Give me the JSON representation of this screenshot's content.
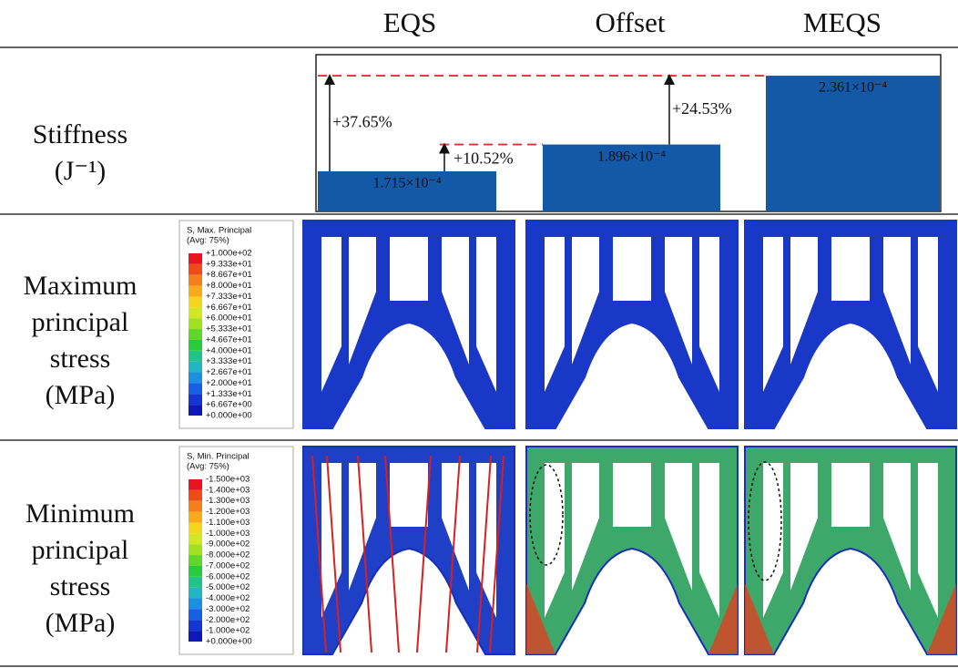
{
  "header": {
    "columns": [
      "EQS",
      "Offset",
      "MEQS"
    ]
  },
  "stiffness": {
    "label": [
      "Stiffness",
      "(J⁻¹)"
    ],
    "bars": [
      {
        "value": 0.0001715,
        "label": "1.715×10⁻⁴"
      },
      {
        "value": 0.0001896,
        "label": "1.896×10⁻⁴"
      },
      {
        "value": 0.0002361,
        "label": "2.361×10⁻⁴"
      }
    ],
    "color": "#1458a8",
    "ylim": [
      0.0001444,
      0.0002503
    ],
    "increases": [
      "+37.65%",
      "+10.52%",
      "+24.53%"
    ]
  },
  "max_stress": {
    "label": [
      "Maximum",
      "principal",
      "stress",
      "(MPa)"
    ],
    "legend": {
      "title": [
        "S, Max. Principal",
        "(Avg: 75%)"
      ],
      "labels": [
        "+1.000e+02",
        "+9.333e+01",
        "+8.667e+01",
        "+8.000e+01",
        "+7.333e+01",
        "+6.667e+01",
        "+6.000e+01",
        "+5.333e+01",
        "+4.667e+01",
        "+4.000e+01",
        "+3.333e+01",
        "+2.667e+01",
        "+2.000e+01",
        "+1.333e+01",
        "+6.667e+00",
        "+0.000e+00"
      ]
    }
  },
  "min_stress": {
    "label": [
      "Minimum",
      "principal",
      "stress",
      "(MPa)"
    ],
    "legend": {
      "title": [
        "S, Min. Principal",
        "(Avg: 75%)"
      ],
      "labels": [
        "-1.500e+03",
        "-1.400e+03",
        "-1.300e+03",
        "-1.200e+03",
        "-1.100e+03",
        "-1.000e+03",
        "-9.000e+02",
        "-8.000e+02",
        "-7.000e+02",
        "-6.000e+02",
        "-5.000e+02",
        "-4.000e+02",
        "-3.000e+02",
        "-2.000e+02",
        "-1.000e+02",
        "+0.000e+00"
      ]
    }
  }
}
